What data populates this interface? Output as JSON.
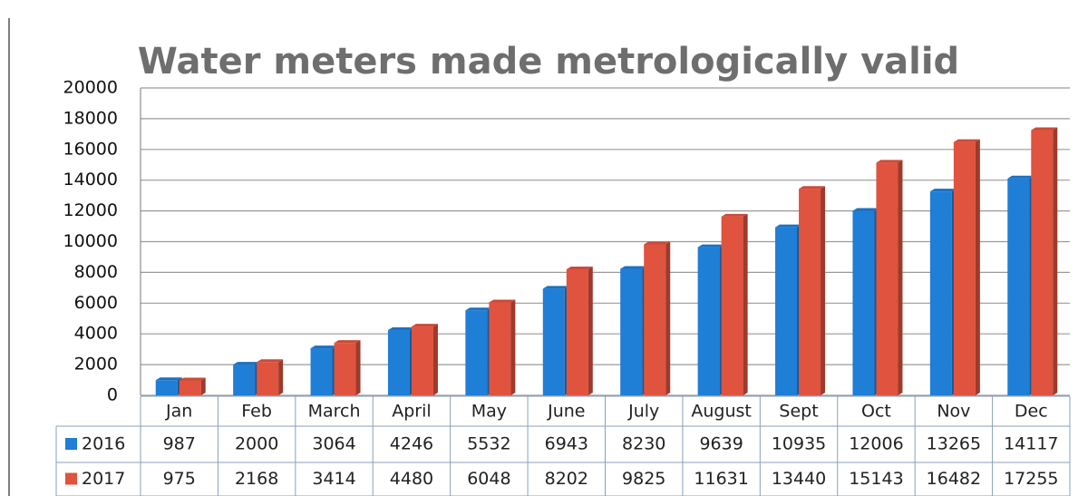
{
  "chart_data": {
    "type": "bar",
    "title": "Water meters made metrologically valid",
    "categories": [
      "Jan",
      "Feb",
      "March",
      "April",
      "May",
      "June",
      "July",
      "August",
      "Sept",
      "Oct",
      "Nov",
      "Dec"
    ],
    "series": [
      {
        "name": "2016",
        "color": "#1f7ed6",
        "values": [
          987,
          2000,
          3064,
          4246,
          5532,
          6943,
          8230,
          9639,
          10935,
          12006,
          13265,
          14117
        ]
      },
      {
        "name": "2017",
        "color": "#e0533e",
        "values": [
          975,
          2168,
          3414,
          4480,
          6048,
          8202,
          9825,
          11631,
          13440,
          15143,
          16482,
          17255
        ]
      }
    ],
    "ylim": [
      0,
      20000
    ],
    "yticks": [
      0,
      2000,
      4000,
      6000,
      8000,
      10000,
      12000,
      14000,
      16000,
      18000,
      20000
    ],
    "grid": true
  }
}
